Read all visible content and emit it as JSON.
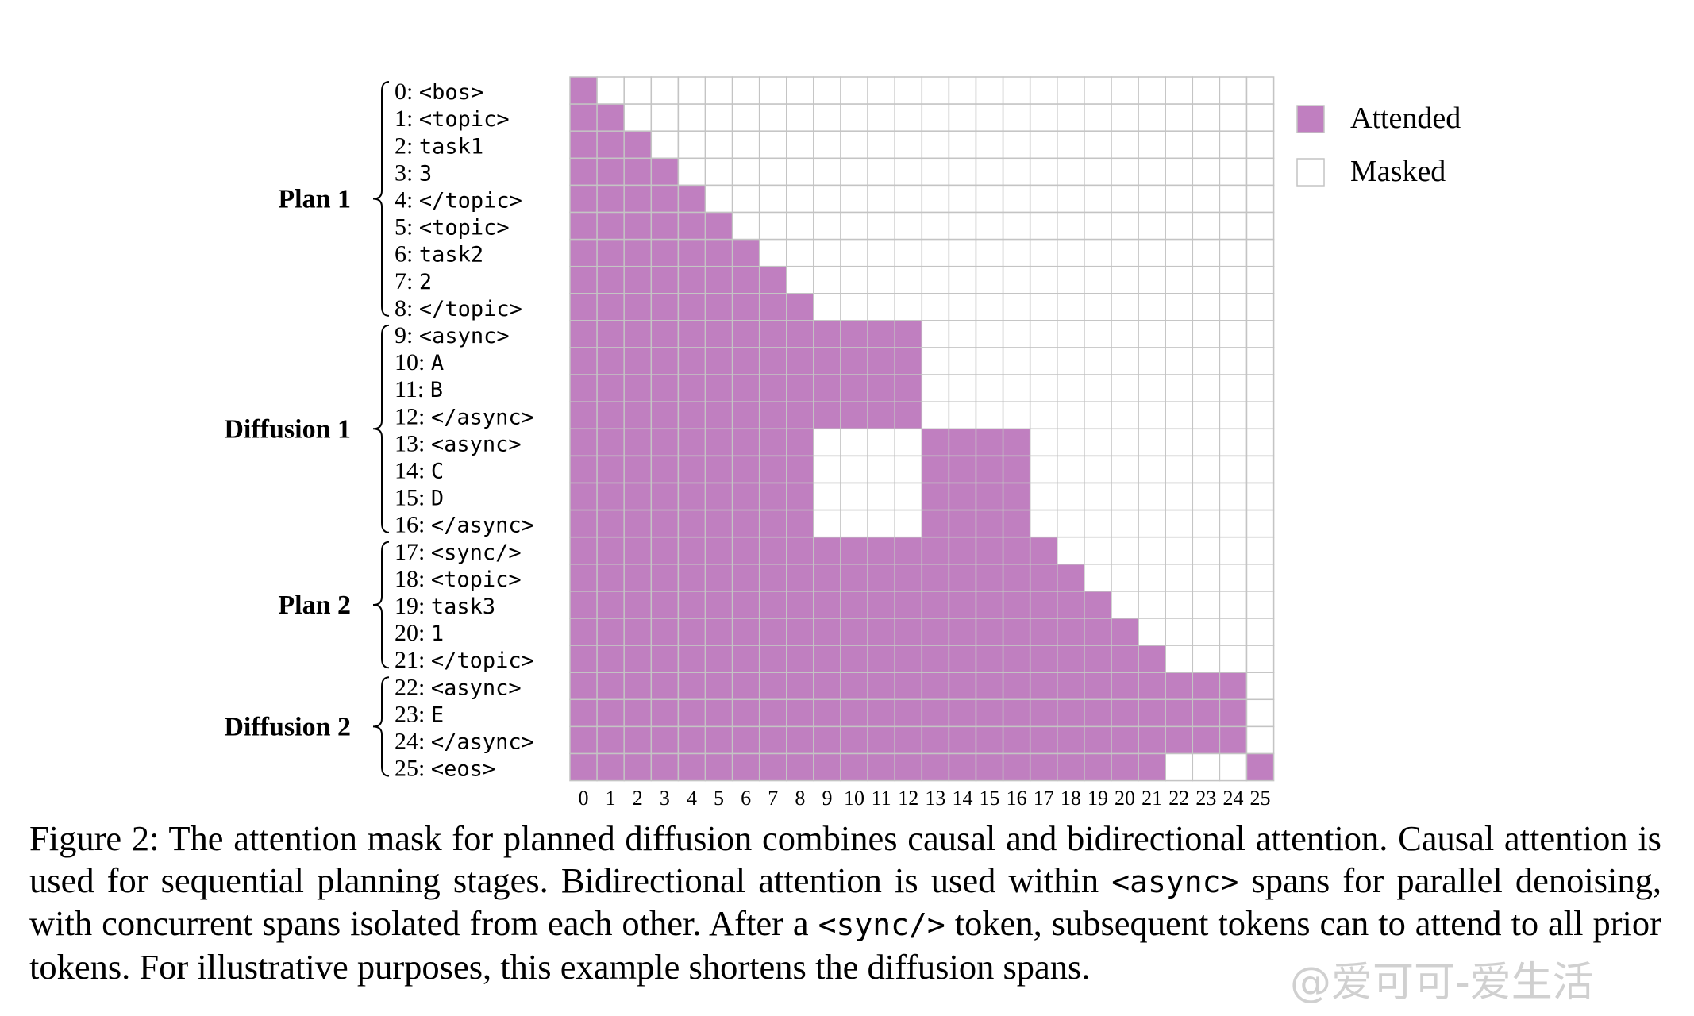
{
  "chart_data": {
    "type": "heatmap",
    "title": "",
    "xlabel": "",
    "ylabel": "",
    "tokens": [
      "0: <bos>",
      "1: <topic>",
      "2: task1",
      "3: 3",
      "4: </topic>",
      "5: <topic>",
      "6: task2",
      "7: 2",
      "8: </topic>",
      "9: <async>",
      "10: A",
      "11: B",
      "12: </async>",
      "13: <async>",
      "14: C",
      "15: D",
      "16: </async>",
      "17: <sync/>",
      "18: <topic>",
      "19: task3",
      "20: 1",
      "21: </topic>",
      "22: <async>",
      "23: E",
      "24: </async>",
      "25: <eos>"
    ],
    "x_ticks": [
      "0",
      "1",
      "2",
      "3",
      "4",
      "5",
      "6",
      "7",
      "8",
      "9",
      "10",
      "11",
      "12",
      "13",
      "14",
      "15",
      "16",
      "17",
      "18",
      "19",
      "20",
      "21",
      "22",
      "23",
      "24",
      "25"
    ],
    "groups": [
      {
        "label": "Plan 1",
        "start": 0,
        "end": 8
      },
      {
        "label": "Diffusion 1",
        "start": 9,
        "end": 16
      },
      {
        "label": "Plan 2",
        "start": 17,
        "end": 21
      },
      {
        "label": "Diffusion 2",
        "start": 22,
        "end": 25
      }
    ],
    "attended_ranges": [
      [
        [
          0,
          0
        ]
      ],
      [
        [
          0,
          1
        ]
      ],
      [
        [
          0,
          2
        ]
      ],
      [
        [
          0,
          3
        ]
      ],
      [
        [
          0,
          4
        ]
      ],
      [
        [
          0,
          5
        ]
      ],
      [
        [
          0,
          6
        ]
      ],
      [
        [
          0,
          7
        ]
      ],
      [
        [
          0,
          8
        ]
      ],
      [
        [
          0,
          12
        ]
      ],
      [
        [
          0,
          12
        ]
      ],
      [
        [
          0,
          12
        ]
      ],
      [
        [
          0,
          12
        ]
      ],
      [
        [
          0,
          8
        ],
        [
          13,
          16
        ]
      ],
      [
        [
          0,
          8
        ],
        [
          13,
          16
        ]
      ],
      [
        [
          0,
          8
        ],
        [
          13,
          16
        ]
      ],
      [
        [
          0,
          8
        ],
        [
          13,
          16
        ]
      ],
      [
        [
          0,
          17
        ]
      ],
      [
        [
          0,
          18
        ]
      ],
      [
        [
          0,
          19
        ]
      ],
      [
        [
          0,
          20
        ]
      ],
      [
        [
          0,
          21
        ]
      ],
      [
        [
          0,
          24
        ]
      ],
      [
        [
          0,
          24
        ]
      ],
      [
        [
          0,
          24
        ]
      ],
      [
        [
          0,
          21
        ],
        [
          25,
          25
        ]
      ]
    ],
    "legend": [
      {
        "label": "Attended",
        "color": "#c07fc0"
      },
      {
        "label": "Masked",
        "color": "#ffffff"
      }
    ],
    "legend_position": "top-right",
    "grid": true,
    "colors": {
      "attended": "#c07fc0",
      "masked": "#ffffff",
      "grid": "#c4c4c4"
    }
  },
  "caption": {
    "prefix": "Figure 2:  The attention mask for planned diffusion combines causal and bidirectional attention.  Causal attention is used for sequential planning stages.  Bidirectional attention is used within ",
    "async_tag": "<async>",
    "middle": " spans for parallel denoising, with concurrent spans isolated from each other.  After a ",
    "sync_tag": "<sync/>",
    "suffix": " token, subsequent tokens can to attend to all prior tokens. For illustrative purposes, this example shortens the diffusion spans."
  },
  "watermark": "@爱可可-爱生活"
}
